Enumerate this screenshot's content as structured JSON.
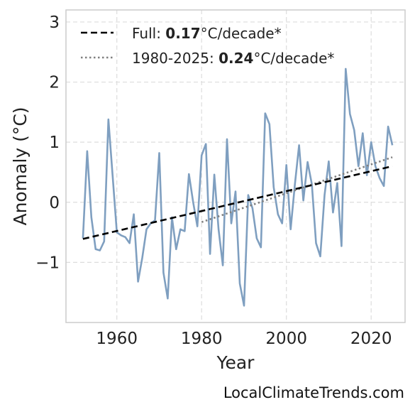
{
  "watermark": "LocalClimateTrends.com",
  "legend": {
    "full": {
      "prefix": "Full: ",
      "value": "0.17",
      "suffix": "°C/decade*"
    },
    "recent": {
      "prefix": "1980-2025: ",
      "value": "0.24",
      "suffix": "°C/decade*"
    }
  },
  "colors": {
    "series": "#7f9fc0",
    "full_trend": "#000000",
    "recent_trend": "#808080",
    "grid": "#dddddd",
    "frame": "#cccccc"
  },
  "chart_data": {
    "type": "line",
    "title": "",
    "xlabel": "Year",
    "ylabel": "Anomaly (°C)",
    "xlim": [
      1948,
      2028
    ],
    "ylim": [
      -2,
      3.2
    ],
    "xticks": [
      1960,
      1980,
      2000,
      2020
    ],
    "yticks": [
      -1,
      0,
      1,
      2,
      3
    ],
    "ytick_labels": [
      "−1",
      "0",
      "1",
      "2",
      "3"
    ],
    "grid": true,
    "legend_position": "top-left",
    "series": [
      {
        "x": [
          1952,
          1953,
          1954,
          1955,
          1956,
          1957,
          1958,
          1959,
          1960,
          1961,
          1962,
          1963,
          1964,
          1965,
          1966,
          1967,
          1968,
          1969,
          1970,
          1971,
          1972,
          1973,
          1974,
          1975,
          1976,
          1977,
          1978,
          1979,
          1980,
          1981,
          1982,
          1983,
          1984,
          1985,
          1986,
          1987,
          1988,
          1989,
          1990,
          1991,
          1992,
          1993,
          1994,
          1995,
          1996,
          1997,
          1998,
          1999,
          2000,
          2001,
          2002,
          2003,
          2004,
          2005,
          2006,
          2007,
          2008,
          2009,
          2010,
          2011,
          2012,
          2013,
          2014,
          2015,
          2016,
          2017,
          2018,
          2019,
          2020,
          2021,
          2022,
          2023,
          2024,
          2025
        ],
        "values": [
          -0.6,
          0.85,
          -0.25,
          -0.78,
          -0.8,
          -0.65,
          1.38,
          0.45,
          -0.5,
          -0.55,
          -0.58,
          -0.68,
          -0.2,
          -1.32,
          -0.92,
          -0.45,
          -0.35,
          -0.3,
          0.82,
          -1.17,
          -1.6,
          -0.25,
          -0.78,
          -0.45,
          -0.48,
          0.47,
          0.0,
          -0.4,
          0.78,
          0.97,
          -0.86,
          0.46,
          -0.45,
          -1.05,
          1.05,
          -0.35,
          0.18,
          -1.35,
          -1.72,
          0.12,
          -0.1,
          -0.6,
          -0.75,
          1.48,
          1.3,
          0.25,
          -0.2,
          -0.35,
          0.62,
          -0.45,
          0.3,
          0.95,
          0.03,
          0.67,
          0.3,
          -0.68,
          -0.9,
          0.12,
          0.68,
          -0.17,
          0.32,
          -0.73,
          2.22,
          1.47,
          1.2,
          0.6,
          1.15,
          0.45,
          1.0,
          0.6,
          0.4,
          0.27,
          1.26,
          0.95
        ]
      }
    ],
    "trend_lines": [
      {
        "name": "Full",
        "x": [
          1952,
          2025
        ],
        "y": [
          -0.61,
          0.6
        ],
        "style": "dashed"
      },
      {
        "name": "1980-2025",
        "x": [
          1980,
          2025
        ],
        "y": [
          -0.33,
          0.75
        ],
        "style": "dotted"
      }
    ]
  }
}
